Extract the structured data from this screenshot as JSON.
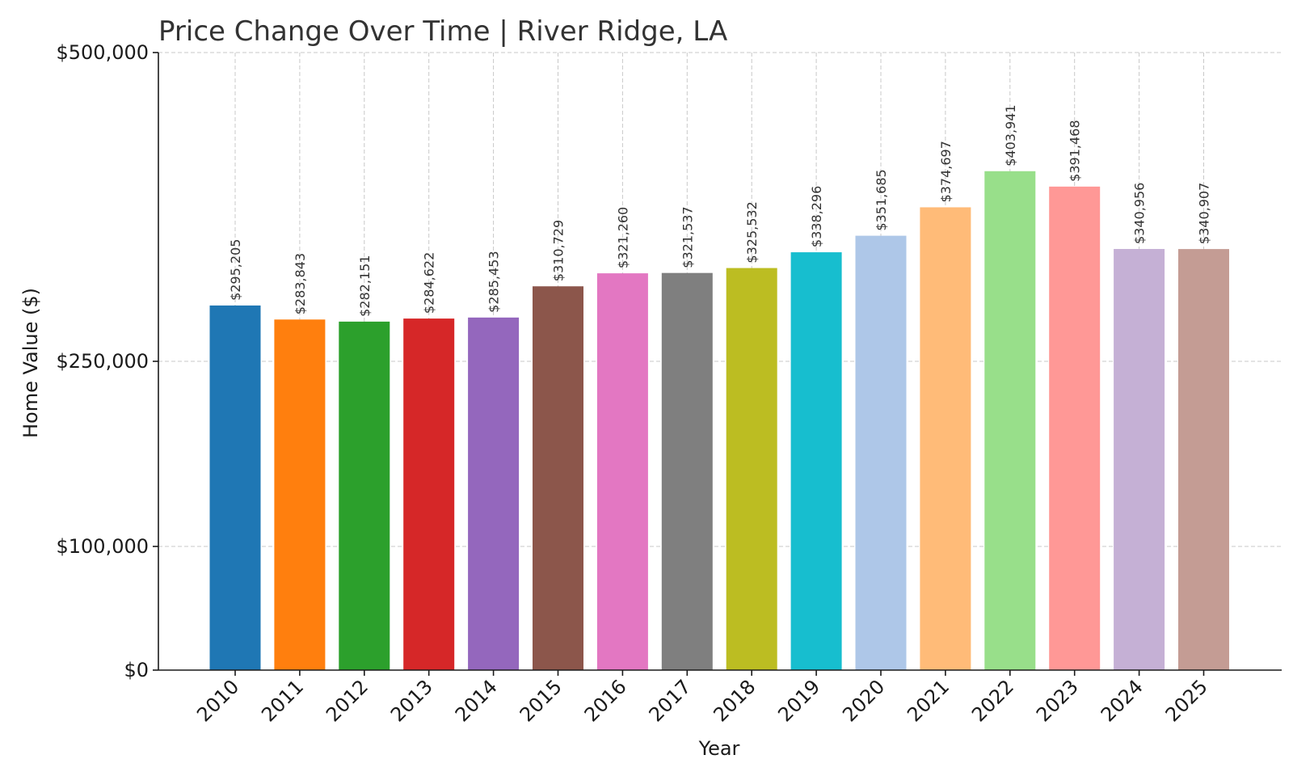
{
  "chart_data": {
    "type": "bar",
    "title": "Price Change Over Time | River Ridge, LA",
    "xlabel": "Year",
    "ylabel": "Home Value ($)",
    "categories": [
      "2010",
      "2011",
      "2012",
      "2013",
      "2014",
      "2015",
      "2016",
      "2017",
      "2018",
      "2019",
      "2020",
      "2021",
      "2022",
      "2023",
      "2024",
      "2025"
    ],
    "values": [
      295205,
      283843,
      282151,
      284622,
      285453,
      310729,
      321260,
      321537,
      325532,
      338296,
      351685,
      374697,
      403941,
      391468,
      340956,
      340907
    ],
    "value_labels": [
      "$295,205",
      "$283,843",
      "$282,151",
      "$284,622",
      "$285,453",
      "$310,729",
      "$321,260",
      "$321,537",
      "$325,532",
      "$338,296",
      "$351,685",
      "$374,697",
      "$403,941",
      "$391,468",
      "$340,956",
      "$340,907"
    ],
    "colors": [
      "#1f77b4",
      "#ff7f0e",
      "#2ca02c",
      "#d62728",
      "#9467bd",
      "#8c564b",
      "#e377c2",
      "#7f7f7f",
      "#bcbd22",
      "#17becf",
      "#aec7e8",
      "#ffbb78",
      "#98df8a",
      "#ff9896",
      "#c5b0d5",
      "#c49c94"
    ],
    "yticks": [
      0,
      100000,
      250000,
      500000
    ],
    "ytick_labels": [
      "$0",
      "$100,000",
      "$250,000",
      "$500,000"
    ],
    "ylim": [
      0,
      500000
    ],
    "grid": true,
    "legend": false
  }
}
